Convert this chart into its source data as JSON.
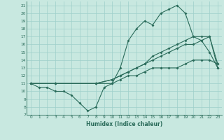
{
  "xlabel": "Humidex (Indice chaleur)",
  "bg_color": "#c8e8e0",
  "line_color": "#2a6b5a",
  "grid_color": "#9ecfca",
  "lines": [
    {
      "x": [
        0,
        1,
        2,
        3,
        4,
        5,
        6,
        7,
        8,
        9,
        10,
        11,
        12,
        13,
        14,
        15,
        16,
        17,
        18,
        19,
        20,
        21,
        22,
        23
      ],
      "y": [
        11,
        10.5,
        10.5,
        10,
        10,
        9.5,
        8.5,
        7.5,
        8,
        10.5,
        11,
        13,
        16.5,
        18,
        19,
        18.5,
        20,
        20.5,
        21,
        20,
        17,
        16.5,
        15,
        13
      ]
    },
    {
      "x": [
        0,
        3,
        8,
        10,
        11,
        12,
        13,
        14,
        15,
        16,
        17,
        18,
        19,
        20,
        21,
        22,
        23
      ],
      "y": [
        11,
        11,
        11,
        11.5,
        12,
        12.5,
        13,
        13.5,
        14.5,
        15,
        15.5,
        16,
        16.5,
        17,
        17,
        17,
        13
      ]
    },
    {
      "x": [
        0,
        3,
        8,
        10,
        11,
        12,
        13,
        14,
        15,
        16,
        17,
        18,
        19,
        20,
        21,
        22,
        23
      ],
      "y": [
        11,
        11,
        11,
        11.5,
        12,
        12.5,
        13,
        13.5,
        14,
        14.5,
        15,
        15.5,
        16,
        16,
        16.5,
        17,
        13.5
      ]
    },
    {
      "x": [
        0,
        3,
        8,
        10,
        11,
        12,
        13,
        14,
        15,
        16,
        17,
        18,
        19,
        20,
        21,
        22,
        23
      ],
      "y": [
        11,
        11,
        11,
        11,
        11.5,
        12,
        12,
        12.5,
        13,
        13,
        13,
        13,
        13.5,
        14,
        14,
        14,
        13.5
      ]
    }
  ],
  "xlim": [
    -0.5,
    23.5
  ],
  "ylim": [
    7,
    21.5
  ],
  "yticks": [
    7,
    8,
    9,
    10,
    11,
    12,
    13,
    14,
    15,
    16,
    17,
    18,
    19,
    20,
    21
  ],
  "xticks": [
    0,
    1,
    2,
    3,
    4,
    5,
    6,
    7,
    8,
    9,
    10,
    11,
    12,
    13,
    14,
    15,
    16,
    17,
    18,
    19,
    20,
    21,
    22,
    23
  ]
}
